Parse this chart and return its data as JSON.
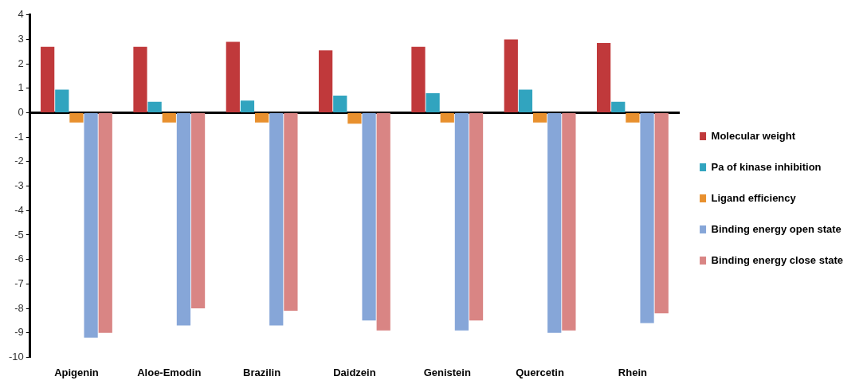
{
  "chart_data": {
    "type": "bar",
    "categories": [
      "Apigenin",
      "Aloe-Emodin",
      "Brazilin",
      "Daidzein",
      "Genistein",
      "Quercetin",
      "Rhein"
    ],
    "series": [
      {
        "name": "Molecular weight",
        "color": "#c0393b",
        "values": [
          2.7,
          2.7,
          2.9,
          2.55,
          2.7,
          3.0,
          2.85
        ]
      },
      {
        "name": "Pa of kinase inhibition",
        "color": "#31a4bf",
        "values": [
          0.95,
          0.45,
          0.5,
          0.7,
          0.8,
          0.95,
          0.45
        ]
      },
      {
        "name": "Ligand efficiency",
        "color": "#e8902e",
        "values": [
          -0.4,
          -0.4,
          -0.4,
          -0.45,
          -0.4,
          -0.4,
          -0.4
        ]
      },
      {
        "name": "Binding energy open state",
        "color": "#86a6d8",
        "values": [
          -9.2,
          -8.7,
          -8.7,
          -8.5,
          -8.9,
          -9.0,
          -8.6
        ]
      },
      {
        "name": "Binding energy close state",
        "color": "#d98584",
        "values": [
          -9.0,
          -8.0,
          -8.1,
          -8.9,
          -8.5,
          -8.9,
          -8.2
        ]
      }
    ],
    "ylim": [
      -10,
      4
    ],
    "yticks": [
      -10,
      -9,
      -8,
      -7,
      -6,
      -5,
      -4,
      -3,
      -2,
      -1,
      0,
      1,
      2,
      3,
      4
    ],
    "legend": "right"
  }
}
